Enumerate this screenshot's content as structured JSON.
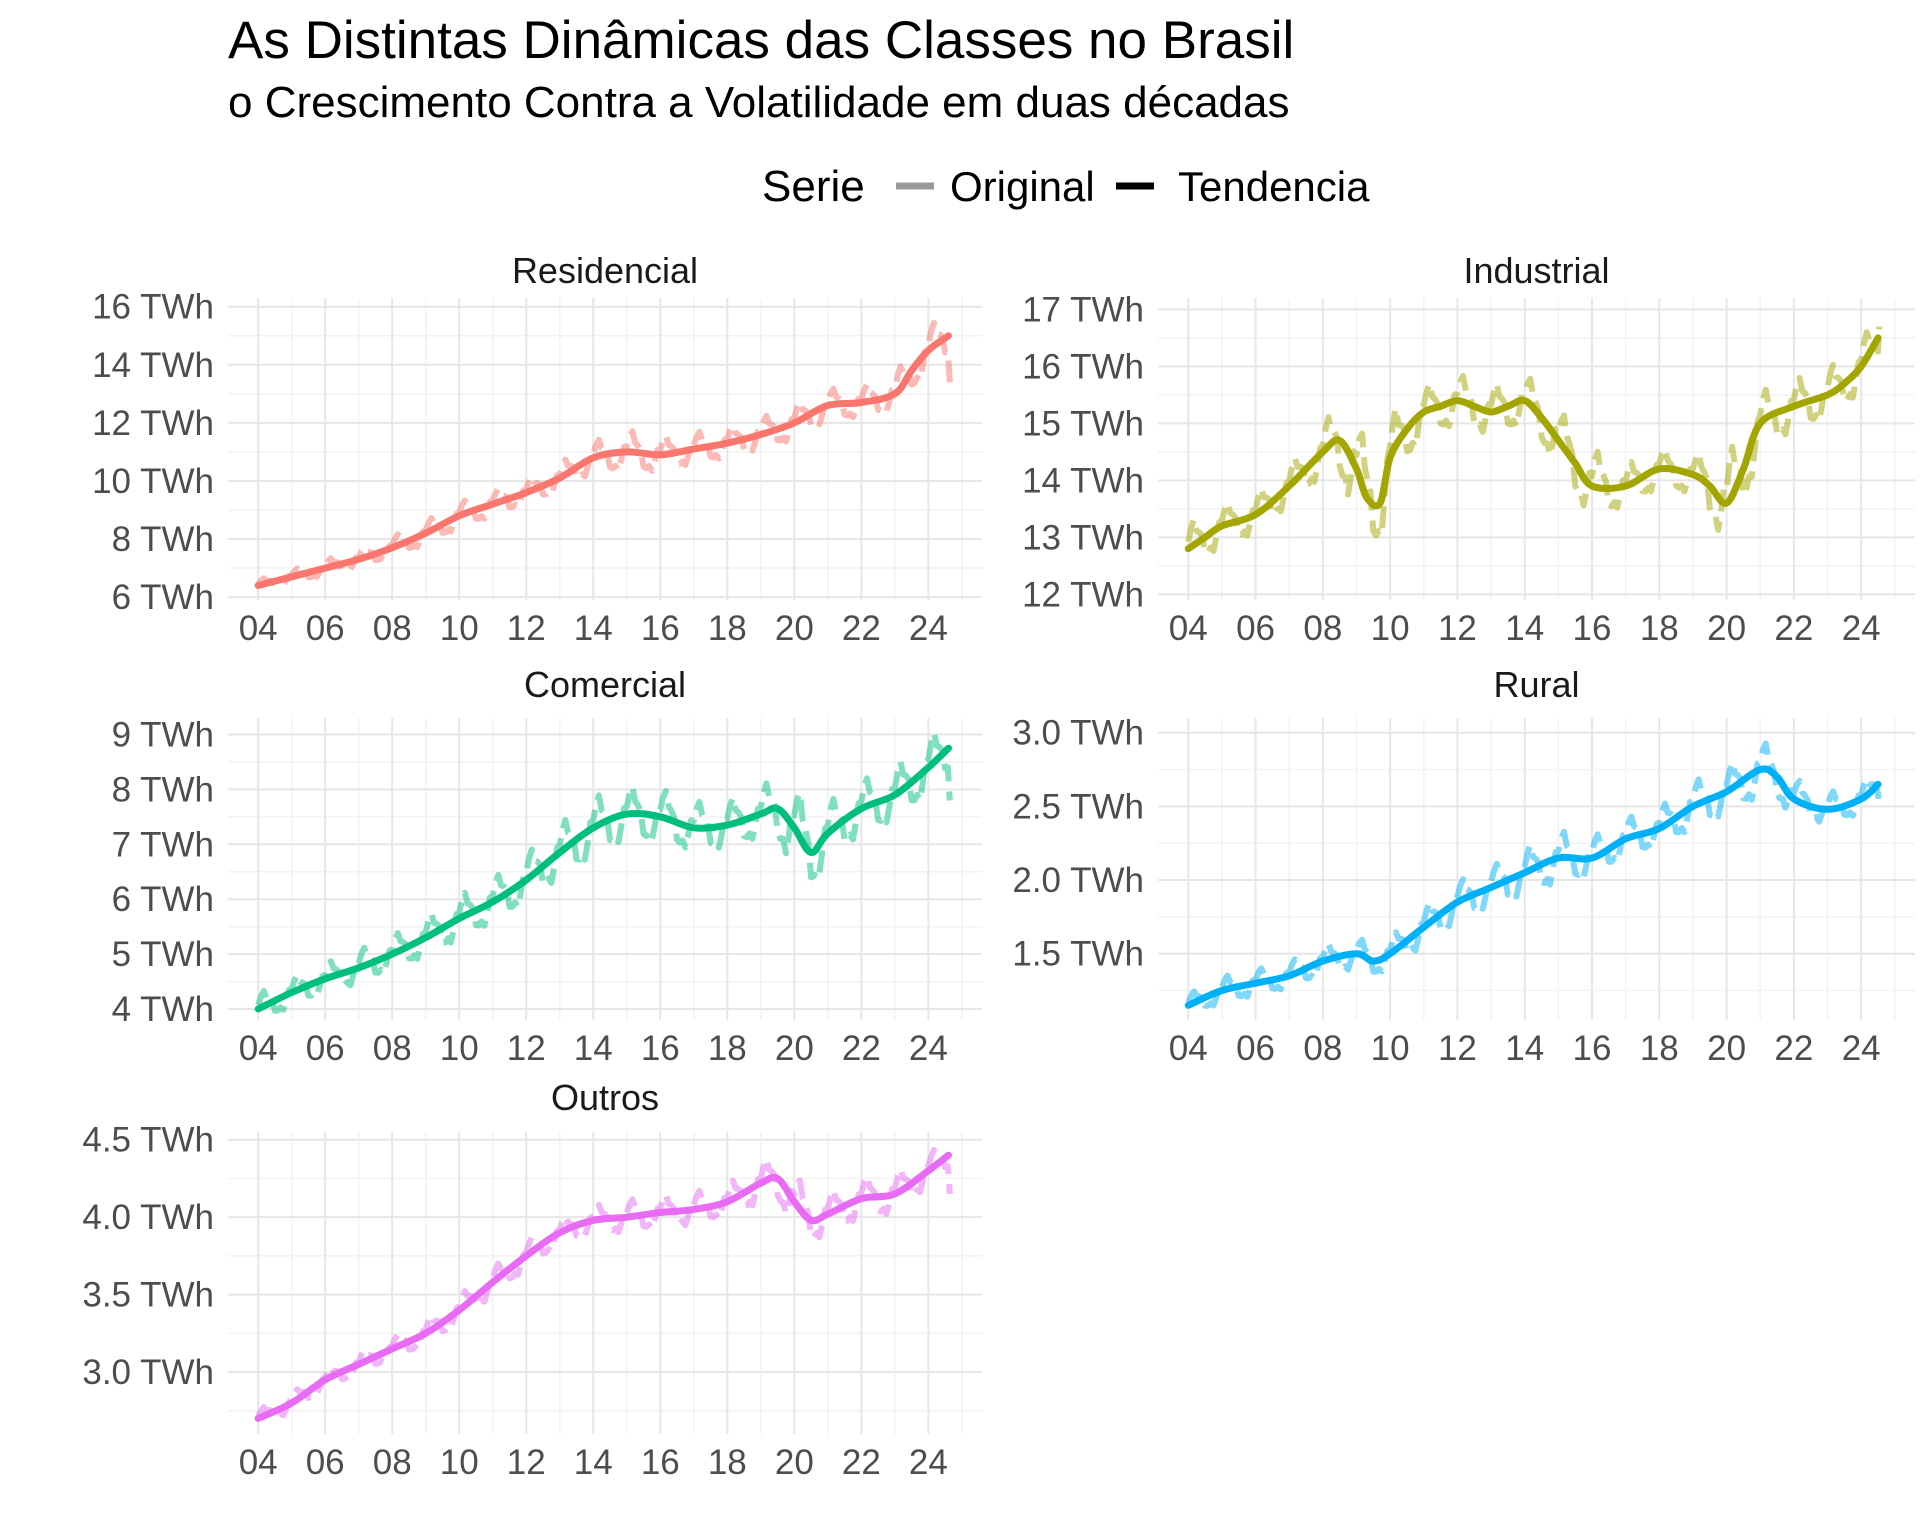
{
  "title": "As Distintas Dinâmicas das Classes no Brasil",
  "subtitle": "o Crescimento Contra a Volatilidade em duas décadas",
  "legend": {
    "title": "Serie",
    "entries": [
      {
        "label": "Original",
        "color": "#999999"
      },
      {
        "label": "Tendencia",
        "color": "#000000"
      }
    ],
    "placement": "top"
  },
  "chart_data": [
    {
      "type": "line",
      "panel": "Residencial",
      "color": "#F8766D",
      "x_tick_labels": [
        "04",
        "06",
        "08",
        "10",
        "12",
        "14",
        "16",
        "18",
        "20",
        "22",
        "24"
      ],
      "x_ticks": [
        2004,
        2006,
        2008,
        2010,
        2012,
        2014,
        2016,
        2018,
        2020,
        2022,
        2024
      ],
      "y_tick_labels": [
        "6 TWh",
        "8 TWh",
        "10 TWh",
        "12 TWh",
        "14 TWh",
        "16 TWh"
      ],
      "y_ticks": [
        6,
        8,
        10,
        12,
        14,
        16
      ],
      "xlim": [
        2003.1,
        2025.6
      ],
      "ylim": [
        5.9,
        16.3
      ],
      "trend": {
        "x": [
          2004,
          2005,
          2006,
          2007,
          2008,
          2009,
          2010,
          2011,
          2012,
          2013,
          2014,
          2015,
          2016,
          2017,
          2018,
          2019,
          2020,
          2021,
          2022,
          2023,
          2023.5,
          2024,
          2024.6
        ],
        "y": [
          6.4,
          6.7,
          7.0,
          7.3,
          7.7,
          8.2,
          8.8,
          9.2,
          9.6,
          10.1,
          10.8,
          11.0,
          10.9,
          11.1,
          11.3,
          11.6,
          12.0,
          12.6,
          12.7,
          13.0,
          13.8,
          14.5,
          15.0
        ]
      },
      "original": {
        "x": [
          2004,
          2005,
          2006,
          2007,
          2008,
          2009,
          2010,
          2011,
          2012,
          2013,
          2014,
          2015,
          2016,
          2017,
          2018,
          2019,
          2020,
          2021,
          2022,
          2023,
          2024,
          2024.6
        ],
        "amp": [
          0.2,
          0.25,
          0.3,
          0.35,
          0.4,
          0.45,
          0.5,
          0.5,
          0.5,
          0.55,
          0.6,
          0.8,
          0.7,
          0.6,
          0.6,
          0.6,
          0.7,
          0.6,
          0.6,
          0.7,
          0.9,
          0.8
        ],
        "last": 13.4
      }
    },
    {
      "type": "line",
      "panel": "Industrial",
      "color": "#A3A500",
      "x_tick_labels": [
        "04",
        "06",
        "08",
        "10",
        "12",
        "14",
        "16",
        "18",
        "20",
        "22",
        "24"
      ],
      "x_ticks": [
        2004,
        2006,
        2008,
        2010,
        2012,
        2014,
        2016,
        2018,
        2020,
        2022,
        2024
      ],
      "y_tick_labels": [
        "12 TWh",
        "13 TWh",
        "14 TWh",
        "15 TWh",
        "16 TWh",
        "17 TWh"
      ],
      "y_ticks": [
        12,
        13,
        14,
        15,
        16,
        17
      ],
      "xlim": [
        2003.1,
        2025.6
      ],
      "ylim": [
        11.9,
        17.2
      ],
      "trend": {
        "x": [
          2004,
          2004.5,
          2005,
          2006,
          2007,
          2008,
          2008.5,
          2009,
          2009.3,
          2009.7,
          2010,
          2010.5,
          2011,
          2011.5,
          2012,
          2012.5,
          2013,
          2013.5,
          2014,
          2014.5,
          2015,
          2015.5,
          2016,
          2017,
          2018,
          2019,
          2019.5,
          2020,
          2020.5,
          2021,
          2022,
          2023,
          2023.5,
          2024,
          2024.5
        ],
        "y": [
          12.8,
          13.0,
          13.2,
          13.4,
          13.9,
          14.5,
          14.7,
          14.2,
          13.7,
          13.6,
          14.4,
          14.9,
          15.2,
          15.3,
          15.4,
          15.3,
          15.2,
          15.3,
          15.4,
          15.1,
          14.7,
          14.3,
          13.9,
          13.9,
          14.2,
          14.1,
          13.9,
          13.6,
          14.2,
          15.0,
          15.3,
          15.5,
          15.7,
          16.0,
          16.5
        ]
      },
      "original": {
        "x": [
          2004,
          2005,
          2006,
          2007,
          2008,
          2009,
          2010,
          2011,
          2012,
          2013,
          2014,
          2015,
          2016,
          2017,
          2018,
          2019,
          2020,
          2021,
          2022,
          2023,
          2024,
          2024.5
        ],
        "amp": [
          0.5,
          0.4,
          0.4,
          0.4,
          0.5,
          1.0,
          0.8,
          0.5,
          0.5,
          0.5,
          0.5,
          0.6,
          0.7,
          0.4,
          0.4,
          0.4,
          0.9,
          0.6,
          0.5,
          0.5,
          0.5,
          0.4
        ],
        "last": 16.7
      }
    },
    {
      "type": "line",
      "panel": "Comercial",
      "color": "#00BF7D",
      "x_tick_labels": [
        "04",
        "06",
        "08",
        "10",
        "12",
        "14",
        "16",
        "18",
        "20",
        "22",
        "24"
      ],
      "x_ticks": [
        2004,
        2006,
        2008,
        2010,
        2012,
        2014,
        2016,
        2018,
        2020,
        2022,
        2024
      ],
      "y_tick_labels": [
        "4 TWh",
        "5 TWh",
        "6 TWh",
        "7 TWh",
        "8 TWh",
        "9 TWh"
      ],
      "y_ticks": [
        4,
        5,
        6,
        7,
        8,
        9
      ],
      "xlim": [
        2003.1,
        2025.6
      ],
      "ylim": [
        3.8,
        9.3
      ],
      "trend": {
        "x": [
          2004,
          2005,
          2006,
          2007,
          2008,
          2009,
          2010,
          2011,
          2012,
          2013,
          2014,
          2015,
          2016,
          2017,
          2018,
          2019,
          2019.5,
          2020,
          2020.5,
          2021,
          2022,
          2023,
          2024,
          2024.6
        ],
        "y": [
          4.0,
          4.3,
          4.55,
          4.75,
          5.0,
          5.3,
          5.65,
          5.95,
          6.35,
          6.85,
          7.3,
          7.55,
          7.5,
          7.3,
          7.35,
          7.55,
          7.65,
          7.3,
          6.85,
          7.2,
          7.65,
          7.9,
          8.4,
          8.75
        ]
      },
      "original": {
        "x": [
          2004,
          2005,
          2006,
          2007,
          2008,
          2009,
          2010,
          2011,
          2012,
          2013,
          2014,
          2015,
          2016,
          2017,
          2018,
          2019,
          2020,
          2021,
          2022,
          2023,
          2024,
          2024.6
        ],
        "amp": [
          0.3,
          0.3,
          0.3,
          0.35,
          0.35,
          0.4,
          0.45,
          0.45,
          0.5,
          0.55,
          0.6,
          0.55,
          0.55,
          0.5,
          0.5,
          0.5,
          0.9,
          0.6,
          0.55,
          0.55,
          0.6,
          0.5
        ],
        "last": 7.8
      }
    },
    {
      "type": "line",
      "panel": "Rural",
      "color": "#00B0F6",
      "x_tick_labels": [
        "04",
        "06",
        "08",
        "10",
        "12",
        "14",
        "16",
        "18",
        "20",
        "22",
        "24"
      ],
      "x_ticks": [
        2004,
        2006,
        2008,
        2010,
        2012,
        2014,
        2016,
        2018,
        2020,
        2022,
        2024
      ],
      "y_tick_labels": [
        "1.5 TWh",
        "2.0 TWh",
        "2.5 TWh",
        "3.0 TWh"
      ],
      "y_ticks": [
        1.5,
        2.0,
        2.5,
        3.0
      ],
      "xlim": [
        2003.1,
        2025.6
      ],
      "ylim": [
        1.05,
        3.1
      ],
      "trend": {
        "x": [
          2004,
          2005,
          2006,
          2007,
          2008,
          2009,
          2009.5,
          2010,
          2011,
          2012,
          2013,
          2014,
          2015,
          2016,
          2017,
          2018,
          2019,
          2020,
          2021,
          2021.5,
          2022,
          2023,
          2024,
          2024.5
        ],
        "y": [
          1.15,
          1.25,
          1.3,
          1.35,
          1.45,
          1.5,
          1.45,
          1.5,
          1.68,
          1.85,
          1.95,
          2.05,
          2.15,
          2.15,
          2.28,
          2.35,
          2.5,
          2.6,
          2.75,
          2.7,
          2.55,
          2.48,
          2.55,
          2.65
        ]
      },
      "original": {
        "x": [
          2004,
          2005,
          2006,
          2007,
          2008,
          2009,
          2010,
          2011,
          2012,
          2013,
          2014,
          2015,
          2016,
          2017,
          2018,
          2019,
          2020,
          2021,
          2022,
          2023,
          2024,
          2024.5
        ],
        "amp": [
          0.08,
          0.1,
          0.1,
          0.1,
          0.12,
          0.12,
          0.12,
          0.15,
          0.15,
          0.15,
          0.18,
          0.2,
          0.15,
          0.15,
          0.15,
          0.18,
          0.18,
          0.22,
          0.15,
          0.12,
          0.12,
          0.1
        ],
        "last": 2.5
      }
    },
    {
      "type": "line",
      "panel": "Outros",
      "color": "#E76BF3",
      "x_tick_labels": [
        "04",
        "06",
        "08",
        "10",
        "12",
        "14",
        "16",
        "18",
        "20",
        "22",
        "24"
      ],
      "x_ticks": [
        2004,
        2006,
        2008,
        2010,
        2012,
        2014,
        2016,
        2018,
        2020,
        2022,
        2024
      ],
      "y_tick_labels": [
        "3.0 TWh",
        "3.5 TWh",
        "4.0 TWh",
        "4.5 TWh"
      ],
      "y_ticks": [
        3.0,
        3.5,
        4.0,
        4.5
      ],
      "xlim": [
        2003.1,
        2025.6
      ],
      "ylim": [
        2.6,
        4.55
      ],
      "trend": {
        "x": [
          2004,
          2005,
          2006,
          2007,
          2008,
          2009,
          2010,
          2011,
          2012,
          2013,
          2014,
          2015,
          2016,
          2017,
          2018,
          2019,
          2019.5,
          2020,
          2020.5,
          2021,
          2022,
          2023,
          2024,
          2024.6
        ],
        "y": [
          2.7,
          2.8,
          2.95,
          3.05,
          3.15,
          3.25,
          3.4,
          3.58,
          3.75,
          3.9,
          3.98,
          4.0,
          4.03,
          4.05,
          4.1,
          4.22,
          4.25,
          4.1,
          3.98,
          4.02,
          4.12,
          4.15,
          4.3,
          4.4
        ]
      },
      "original": {
        "x": [
          2004,
          2005,
          2006,
          2007,
          2008,
          2009,
          2010,
          2011,
          2012,
          2013,
          2014,
          2015,
          2016,
          2017,
          2018,
          2019,
          2020,
          2021,
          2022,
          2023,
          2024,
          2024.6
        ],
        "amp": [
          0.06,
          0.07,
          0.07,
          0.08,
          0.08,
          0.1,
          0.1,
          0.1,
          0.1,
          0.1,
          0.1,
          0.12,
          0.12,
          0.12,
          0.12,
          0.15,
          0.2,
          0.15,
          0.15,
          0.15,
          0.12,
          0.1
        ],
        "last": 4.15
      }
    }
  ]
}
